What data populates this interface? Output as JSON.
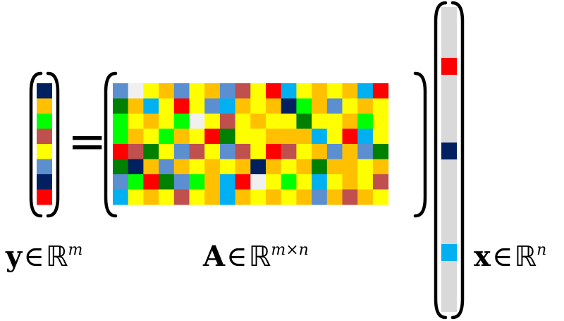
{
  "equation": {
    "equals_sign": "=",
    "y_label": {
      "symbol": "y",
      "relation": "∈",
      "set": "ℝ",
      "dim": "m"
    },
    "a_label": {
      "symbol": "A",
      "relation": "∈",
      "set": "ℝ",
      "dim": "m×n"
    },
    "x_label": {
      "symbol": "x",
      "relation": "∈",
      "set": "ℝ",
      "dim": "n"
    }
  },
  "palette": {
    "Y": "#ffff00",
    "O": "#ffc000",
    "G": "#00ff00",
    "D": "#008000",
    "R": "#ff0000",
    "M": "#c0504d",
    "B": "#5b8fcf",
    "C": "#00b0f0",
    "N": "#002060",
    "W": "#f0f0f0",
    "gray": "#d9d9d9"
  },
  "y_vector": [
    "N",
    "O",
    "G",
    "M",
    "Y",
    "B",
    "N",
    "R"
  ],
  "a_matrix": [
    [
      "B",
      "W",
      "Y",
      "O",
      "B",
      "Y",
      "O",
      "B",
      "M",
      "Y",
      "R",
      "C",
      "Y",
      "O",
      "Y",
      "O",
      "C",
      "R"
    ],
    [
      "D",
      "O",
      "C",
      "Y",
      "R",
      "Y",
      "B",
      "C",
      "O",
      "Y",
      "O",
      "N",
      "G",
      "O",
      "B",
      "Y",
      "O",
      "Y"
    ],
    [
      "G",
      "Y",
      "O",
      "Y",
      "G",
      "W",
      "Y",
      "M",
      "Y",
      "O",
      "Y",
      "Y",
      "D",
      "Y",
      "Y",
      "O",
      "G",
      "Y"
    ],
    [
      "G",
      "O",
      "Y",
      "G",
      "O",
      "Y",
      "R",
      "D",
      "Y",
      "Y",
      "O",
      "O",
      "O",
      "C",
      "Y",
      "R",
      "C",
      "Y"
    ],
    [
      "R",
      "M",
      "D",
      "Y",
      "B",
      "M",
      "Y",
      "B",
      "M",
      "Y",
      "R",
      "M",
      "Y",
      "O",
      "B",
      "O",
      "B",
      "D"
    ],
    [
      "D",
      "N",
      "O",
      "B",
      "O",
      "Y",
      "O",
      "Y",
      "O",
      "N",
      "O",
      "Y",
      "O",
      "D",
      "O",
      "O",
      "Y",
      "O"
    ],
    [
      "B",
      "G",
      "R",
      "D",
      "B",
      "G",
      "O",
      "C",
      "R",
      "W",
      "Y",
      "G",
      "Y",
      "C",
      "Y",
      "O",
      "Y",
      "M"
    ],
    [
      "C",
      "Y",
      "O",
      "Y",
      "M",
      "Y",
      "O",
      "C",
      "O",
      "Y",
      "O",
      "Y",
      "O",
      "B",
      "O",
      "M",
      "O",
      "Y"
    ]
  ],
  "x_vector": {
    "length": 18,
    "nonzero": [
      {
        "index": 3,
        "color": "R"
      },
      {
        "index": 8,
        "color": "N"
      },
      {
        "index": 14,
        "color": "C"
      }
    ]
  }
}
